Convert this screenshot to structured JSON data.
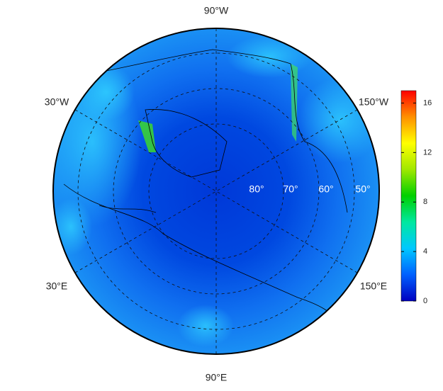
{
  "map": {
    "longitude_labels": [
      "90°W",
      "30°W",
      "150°W",
      "30°E",
      "150°E",
      "90°E"
    ],
    "latitude_labels": [
      "80°",
      "70°",
      "60°",
      "50°"
    ],
    "colorbar": {
      "lim": [
        0,
        17
      ],
      "ticks": [
        0,
        4,
        8,
        12,
        16
      ],
      "colors": [
        "#0000c0",
        "#0060ff",
        "#00c8ff",
        "#00e8a0",
        "#00d000",
        "#a0e800",
        "#ffff00",
        "#ff9000",
        "#ff0000"
      ]
    }
  }
}
